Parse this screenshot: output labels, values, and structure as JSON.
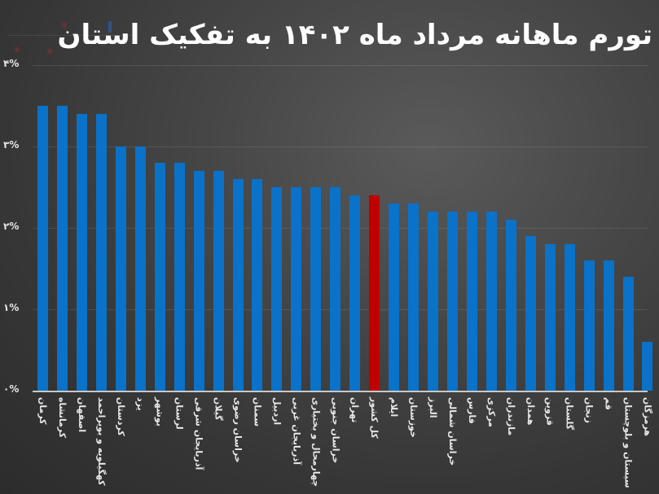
{
  "title": "تورم ماهانه مرداد ماه ۱۴۰۲ به تفکیک استان",
  "colors": {
    "bar": "#0a72c8",
    "highlight": "#c00000",
    "background": "#3a3a3a",
    "text": "#ffffff"
  },
  "axis": {
    "y_ticks": [
      "۰%",
      "۱%",
      "۲%",
      "۳%",
      "۴%"
    ]
  },
  "chart_data": {
    "type": "bar",
    "title": "تورم ماهانه مرداد ماه ۱۴۰۲ به تفکیک استان",
    "xlabel": "",
    "ylabel": "",
    "ylim": [
      0,
      4
    ],
    "y_ticks": [
      0,
      1,
      2,
      3,
      4
    ],
    "grid": true,
    "legend": null,
    "highlight_category": "کل کشور",
    "categories": [
      "کرمان",
      "کرمانشاه",
      "اصفهان",
      "کهگیلویه و بویراحمد",
      "کردستان",
      "یزد",
      "بوشهر",
      "لرستان",
      "آذربایجان شرقی",
      "گیلان",
      "خراسان رضوی",
      "سمنان",
      "اردبیل",
      "آذربایجان غربی",
      "چهارمحال و بختیاری",
      "خراسان جنوبی",
      "تهران",
      "کل کشور",
      "ایلام",
      "خوزستان",
      "البرز",
      "خراسان شمالی",
      "فارس",
      "مرکزی",
      "مازندران",
      "همدان",
      "قزوین",
      "گلستان",
      "زنجان",
      "قم",
      "سیستان و بلوچستان",
      "هرمزگان"
    ],
    "values": [
      3.5,
      3.5,
      3.4,
      3.4,
      3.0,
      3.0,
      2.8,
      2.8,
      2.7,
      2.7,
      2.6,
      2.6,
      2.5,
      2.5,
      2.5,
      2.5,
      2.4,
      2.4,
      2.3,
      2.3,
      2.2,
      2.2,
      2.2,
      2.2,
      2.1,
      1.9,
      1.8,
      1.8,
      1.6,
      1.6,
      1.4,
      0.6
    ],
    "unit": "%"
  }
}
